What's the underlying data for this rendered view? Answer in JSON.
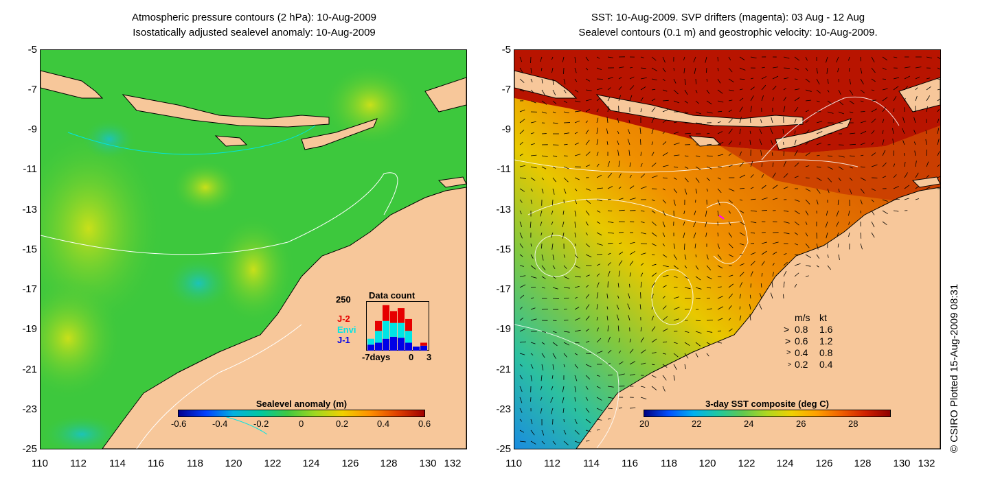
{
  "left_panel": {
    "title_line1": "Atmospheric pressure contours (2 hPa): 10-Aug-2009",
    "title_line2": "Isostatically adjusted sealevel anomaly: 10-Aug-2009",
    "y_ticks": [
      "-5",
      "-7",
      "-9",
      "-11",
      "-13",
      "-15",
      "-17",
      "-19",
      "-21",
      "-23",
      "-25"
    ],
    "x_ticks": [
      "110",
      "112",
      "114",
      "116",
      "118",
      "120",
      "122",
      "124",
      "126",
      "128",
      "130",
      "132"
    ],
    "colorbar": {
      "label": "Sealevel anomaly (m)",
      "ticks": [
        "-0.6",
        "-0.4",
        "-0.2",
        "0",
        "0.2",
        "0.4",
        "0.6"
      ],
      "range": [
        -0.6,
        0.6
      ]
    },
    "data_count": {
      "title": "Data count",
      "max_label": "250",
      "x_labels": [
        "-7days",
        "0",
        "3"
      ],
      "legend": [
        {
          "label": "J-2",
          "color": "#e60000"
        },
        {
          "label": "Envi",
          "color": "#00e5e5"
        },
        {
          "label": "J-1",
          "color": "#0000e6"
        }
      ],
      "bars": [
        {
          "j1": 30,
          "envi": 30,
          "j2": 0
        },
        {
          "j1": 40,
          "envi": 60,
          "j2": 50
        },
        {
          "j1": 60,
          "envi": 90,
          "j2": 80
        },
        {
          "j1": 70,
          "envi": 70,
          "j2": 60
        },
        {
          "j1": 65,
          "envi": 75,
          "j2": 75
        },
        {
          "j1": 40,
          "envi": 60,
          "j2": 60
        },
        {
          "j1": 20,
          "envi": 0,
          "j2": 0
        },
        {
          "j1": 25,
          "envi": 0,
          "j2": 15
        }
      ]
    }
  },
  "right_panel": {
    "title_line1": "SST: 10-Aug-2009. SVP drifters (magenta): 03 Aug - 12 Aug",
    "title_line2": "Sealevel contours (0.1 m) and geostrophic velocity: 10-Aug-2009.",
    "y_ticks": [
      "-5",
      "-7",
      "-9",
      "-11",
      "-13",
      "-15",
      "-17",
      "-19",
      "-21",
      "-23",
      "-25"
    ],
    "x_ticks": [
      "110",
      "112",
      "114",
      "116",
      "118",
      "120",
      "122",
      "124",
      "126",
      "128",
      "130",
      "132"
    ],
    "colorbar": {
      "label": "3-day SST composite (deg C)",
      "ticks": [
        "20",
        "22",
        "24",
        "26",
        "28"
      ],
      "range": [
        20,
        29.5
      ]
    },
    "velocity_legend": {
      "header_ms": "m/s",
      "header_kt": "kt",
      "rows": [
        {
          "ms": "0.8",
          "kt": "1.6"
        },
        {
          "ms": "0.6",
          "kt": "1.2"
        },
        {
          "ms": "0.4",
          "kt": "0.8"
        },
        {
          "ms": "0.2",
          "kt": "0.4"
        }
      ]
    }
  },
  "credit": "© CSIRO Plotted 15-Aug-2009 08:31",
  "colors": {
    "land": "#f7c79a",
    "ocean_left": "#3dc83d",
    "ocean_right_warm": "#e07000",
    "ocean_right_hot": "#b81400"
  }
}
